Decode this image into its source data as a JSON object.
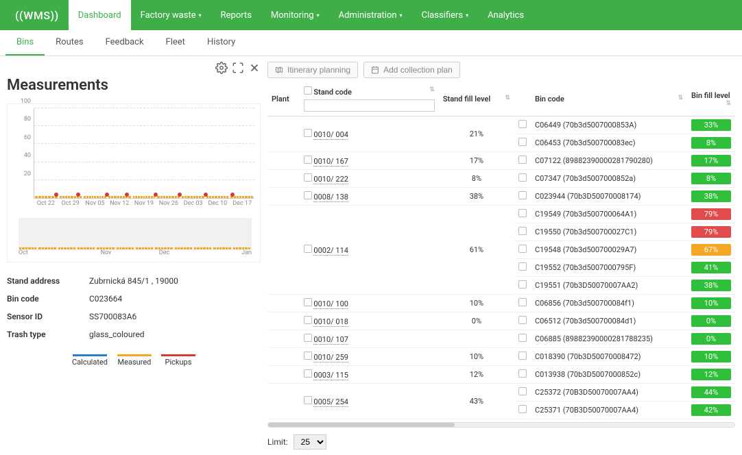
{
  "brand": "((WMS))",
  "nav": {
    "dashboard": "Dashboard",
    "factory_waste": "Factory waste",
    "reports": "Reports",
    "monitoring": "Monitoring",
    "administration": "Administration",
    "classifiers": "Classifiers",
    "analytics": "Analytics"
  },
  "subtabs": {
    "bins": "Bins",
    "routes": "Routes",
    "feedback": "Feedback",
    "fleet": "Fleet",
    "history": "History"
  },
  "measurements": {
    "title": "Measurements",
    "chart": {
      "type": "area-bar",
      "ylim": [
        0,
        100
      ],
      "yticks": [
        20,
        40,
        60,
        80,
        100
      ],
      "xticks": [
        "Oct 22",
        "Oct 29",
        "Nov 05",
        "Nov 12",
        "Nov 19",
        "Nov 26",
        "Dec 03",
        "Dec 10",
        "Dec 17"
      ],
      "bar_color": "#2a7ed2",
      "measured_color": "#f5a623",
      "pickup_color": "#d43a2f",
      "background": "#ffffff",
      "grid": "#e0e0e0",
      "segments": [
        [
          14,
          18,
          24,
          30,
          36,
          42,
          46
        ],
        [
          10,
          16,
          22,
          26,
          30,
          34,
          40,
          44
        ],
        [
          10,
          14,
          20,
          26,
          30,
          34,
          38,
          42,
          46
        ],
        [
          8,
          12,
          18,
          24,
          28,
          32,
          36,
          40
        ],
        [
          10,
          16,
          22,
          26,
          30,
          34,
          38,
          42,
          46
        ],
        [
          8,
          14,
          20,
          24,
          28,
          32,
          36,
          38
        ],
        [
          10,
          16,
          22,
          26,
          30,
          34,
          38,
          42
        ],
        [
          8,
          14,
          20,
          24,
          30,
          36,
          42,
          48
        ],
        [
          10,
          16,
          22,
          28,
          34,
          38,
          42,
          44
        ]
      ],
      "pickups_pct": [
        10,
        20,
        33,
        42,
        55,
        66,
        78,
        90
      ]
    },
    "mini": {
      "xticks": [
        "Oct",
        "Nov",
        "Dec",
        "Jan"
      ],
      "segments": [
        [
          12,
          18,
          24,
          30,
          36,
          40
        ],
        [
          10,
          16,
          22,
          28,
          34,
          38
        ],
        [
          12,
          18,
          24,
          30,
          36,
          42
        ],
        [
          10,
          16,
          22,
          28,
          32,
          36
        ],
        [
          12,
          18,
          24,
          30,
          36,
          40
        ],
        [
          10,
          16,
          22,
          28,
          34,
          40
        ],
        [
          12,
          18,
          24,
          30,
          34,
          38
        ],
        [
          10,
          16,
          22,
          28,
          34,
          40
        ],
        [
          12,
          18,
          24,
          30,
          36,
          42
        ],
        [
          10,
          16,
          22,
          28,
          34,
          38
        ],
        [
          12,
          18,
          24,
          30,
          36,
          40
        ],
        [
          10,
          16,
          22,
          28,
          34,
          38
        ]
      ]
    },
    "details": {
      "stand_address_label": "Stand address",
      "stand_address": "Zubrnická 845/1 , 19000",
      "bin_code_label": "Bin code",
      "bin_code": "C023664",
      "sensor_id_label": "Sensor ID",
      "sensor_id": "SS700083A6",
      "trash_type_label": "Trash type",
      "trash_type": "glass_coloured"
    },
    "legend": {
      "calculated": "Calculated",
      "measured": "Measured",
      "pickups": "Pickups",
      "calculated_color": "#2a7ed2",
      "measured_color": "#f5a623",
      "pickups_color": "#d43a2f"
    }
  },
  "buttons": {
    "itinerary": "Itinerary planning",
    "add_plan": "Add collection plan"
  },
  "table": {
    "headers": {
      "plant": "Plant",
      "stand_code": "Stand code",
      "stand_fill": "Stand fill level",
      "bin_code": "Bin code",
      "bin_fill": "Bin fill level"
    },
    "fill_colors": {
      "green": "#2fbf3a",
      "orange": "#f5a623",
      "red": "#e14b4b"
    },
    "stands": [
      {
        "code": "0010/ 004",
        "fill": "21%",
        "bins": [
          {
            "code": "C06449 (70b3d5007000853A)",
            "fill": "33%",
            "c": "green"
          },
          {
            "code": "C06453 (70b3d500700083ec)",
            "fill": "8%",
            "c": "green"
          }
        ]
      },
      {
        "code": "0010/ 167",
        "fill": "17%",
        "bins": [
          {
            "code": "C07122 (89882390000281790280)",
            "fill": "17%",
            "c": "green"
          }
        ]
      },
      {
        "code": "0010/ 222",
        "fill": "8%",
        "bins": [
          {
            "code": "C07347 (70b3d5007000852a)",
            "fill": "8%",
            "c": "green"
          }
        ]
      },
      {
        "code": "0008/ 138",
        "fill": "38%",
        "bins": [
          {
            "code": "C023944 (70b3D50070008174)",
            "fill": "38%",
            "c": "green"
          }
        ]
      },
      {
        "code": "0002/ 114",
        "fill": "61%",
        "bins": [
          {
            "code": "C19549 (70b3d500700064A1)",
            "fill": "79%",
            "c": "red"
          },
          {
            "code": "C19550 (70b3d500700027C1)",
            "fill": "79%",
            "c": "red"
          },
          {
            "code": "C19548 (70b3d500700029A7)",
            "fill": "67%",
            "c": "orange"
          },
          {
            "code": "C19552 (70b3d5007000795F)",
            "fill": "41%",
            "c": "green"
          },
          {
            "code": "C19551 (70b3D50070007AA2)",
            "fill": "38%",
            "c": "green"
          }
        ]
      },
      {
        "code": "0010/ 100",
        "fill": "10%",
        "bins": [
          {
            "code": "C06856 (70b3d500700084f1)",
            "fill": "10%",
            "c": "green"
          }
        ]
      },
      {
        "code": "0010/ 018",
        "fill": "0%",
        "bins": [
          {
            "code": "C06512 (70b3d500700084d1)",
            "fill": "0%",
            "c": "green"
          }
        ]
      },
      {
        "code": "0010/ 107",
        "fill": "",
        "bins": [
          {
            "code": "C06885 (89882390000281788235)",
            "fill": "0%",
            "c": "green"
          }
        ]
      },
      {
        "code": "0010/ 259",
        "fill": "10%",
        "bins": [
          {
            "code": "C018390 (70b3D50070008472)",
            "fill": "10%",
            "c": "green"
          }
        ]
      },
      {
        "code": "0003/ 115",
        "fill": "12%",
        "bins": [
          {
            "code": "C013938 (70b3D5007000852c)",
            "fill": "12%",
            "c": "green"
          }
        ]
      },
      {
        "code": "0005/ 254",
        "fill": "43%",
        "bins": [
          {
            "code": "C25372 (70B3D50070007AA4)",
            "fill": "44%",
            "c": "green"
          },
          {
            "code": "C25371 (70B3D50070007AA4)",
            "fill": "42%",
            "c": "green"
          }
        ]
      }
    ]
  },
  "limit": {
    "label": "Limit:",
    "value": "25"
  }
}
